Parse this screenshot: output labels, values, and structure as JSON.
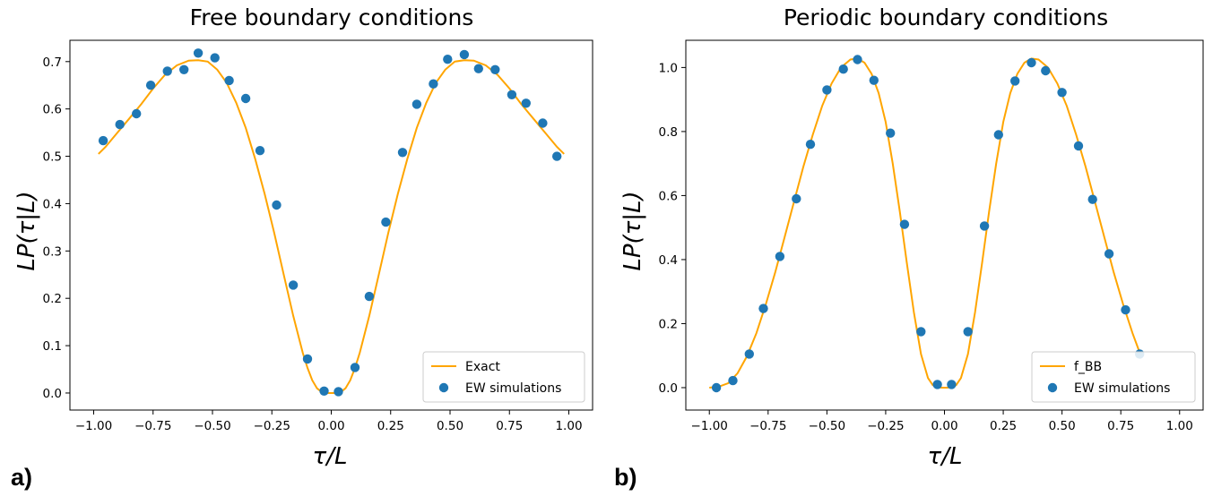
{
  "chart_data": [
    {
      "type": "line",
      "panel_label": "a)",
      "title": "Free boundary conditions",
      "xlabel": "τ/L",
      "ylabel": "LP(τ|L)",
      "xlim": [
        -1.1,
        1.1
      ],
      "ylim": [
        -0.036,
        0.745
      ],
      "xticks": [
        -1.0,
        -0.75,
        -0.5,
        -0.25,
        0.0,
        0.25,
        0.5,
        0.75,
        1.0
      ],
      "xtick_labels": [
        "−1.00",
        "−0.75",
        "−0.50",
        "−0.25",
        "0.00",
        "0.25",
        "0.50",
        "0.75",
        "1.00"
      ],
      "yticks": [
        0.0,
        0.1,
        0.2,
        0.3,
        0.4,
        0.5,
        0.6,
        0.7
      ],
      "ytick_labels": [
        "0.0",
        "0.1",
        "0.2",
        "0.3",
        "0.4",
        "0.5",
        "0.6",
        "0.7"
      ],
      "legend_position": "lower right",
      "series": [
        {
          "name": "Exact",
          "kind": "line",
          "color": "#FFA500",
          "x": [
            -0.98,
            -0.95,
            -0.9,
            -0.85,
            -0.8,
            -0.75,
            -0.7,
            -0.65,
            -0.6,
            -0.56,
            -0.52,
            -0.48,
            -0.44,
            -0.4,
            -0.36,
            -0.32,
            -0.28,
            -0.24,
            -0.2,
            -0.16,
            -0.12,
            -0.1,
            -0.08,
            -0.06,
            -0.04,
            -0.02,
            0.0,
            0.02,
            0.04,
            0.06,
            0.08,
            0.1,
            0.12,
            0.16,
            0.2,
            0.24,
            0.28,
            0.32,
            0.36,
            0.4,
            0.44,
            0.48,
            0.52,
            0.56,
            0.6,
            0.65,
            0.7,
            0.75,
            0.8,
            0.85,
            0.9,
            0.95,
            0.98
          ],
          "y": [
            0.505,
            0.52,
            0.55,
            0.58,
            0.61,
            0.643,
            0.672,
            0.692,
            0.702,
            0.703,
            0.7,
            0.683,
            0.655,
            0.613,
            0.56,
            0.494,
            0.42,
            0.338,
            0.25,
            0.163,
            0.085,
            0.053,
            0.027,
            0.01,
            0.002,
            0.0,
            0.0,
            0.0,
            0.002,
            0.01,
            0.027,
            0.053,
            0.085,
            0.163,
            0.25,
            0.338,
            0.42,
            0.494,
            0.56,
            0.613,
            0.655,
            0.683,
            0.7,
            0.703,
            0.702,
            0.692,
            0.672,
            0.643,
            0.61,
            0.58,
            0.55,
            0.52,
            0.505
          ]
        },
        {
          "name": "EW simulations",
          "kind": "scatter",
          "color": "#1F77B4",
          "x": [
            -0.96,
            -0.89,
            -0.82,
            -0.76,
            -0.69,
            -0.62,
            -0.56,
            -0.49,
            -0.43,
            -0.36,
            -0.3,
            -0.23,
            -0.16,
            -0.1,
            -0.03,
            0.03,
            0.1,
            0.16,
            0.23,
            0.3,
            0.36,
            0.43,
            0.49,
            0.56,
            0.62,
            0.69,
            0.76,
            0.82,
            0.89,
            0.95
          ],
          "y": [
            0.533,
            0.567,
            0.59,
            0.65,
            0.68,
            0.683,
            0.718,
            0.708,
            0.66,
            0.622,
            0.512,
            0.397,
            0.228,
            0.072,
            0.004,
            0.003,
            0.054,
            0.204,
            0.361,
            0.508,
            0.61,
            0.653,
            0.705,
            0.715,
            0.685,
            0.683,
            0.63,
            0.612,
            0.57,
            0.5
          ]
        }
      ]
    },
    {
      "type": "line",
      "panel_label": "b)",
      "title": "Periodic boundary conditions",
      "xlabel": "τ/L",
      "ylabel": "LP(τ|L)",
      "xlim": [
        -1.1,
        1.1
      ],
      "ylim": [
        -0.07,
        1.085
      ],
      "xticks": [
        -1.0,
        -0.75,
        -0.5,
        -0.25,
        0.0,
        0.25,
        0.5,
        0.75,
        1.0
      ],
      "xtick_labels": [
        "−1.00",
        "−0.75",
        "−0.50",
        "−0.25",
        "0.00",
        "0.25",
        "0.50",
        "0.75",
        "1.00"
      ],
      "yticks": [
        0.0,
        0.2,
        0.4,
        0.6,
        0.8,
        1.0
      ],
      "ytick_labels": [
        "0.0",
        "0.2",
        "0.4",
        "0.6",
        "0.8",
        "1.0"
      ],
      "legend_position": "lower right",
      "series": [
        {
          "name": "f_BB",
          "kind": "line",
          "color": "#FFA500",
          "x": [
            -1.0,
            -0.96,
            -0.92,
            -0.88,
            -0.84,
            -0.8,
            -0.76,
            -0.72,
            -0.68,
            -0.64,
            -0.6,
            -0.56,
            -0.52,
            -0.48,
            -0.44,
            -0.4,
            -0.37,
            -0.34,
            -0.31,
            -0.28,
            -0.25,
            -0.22,
            -0.19,
            -0.16,
            -0.13,
            -0.1,
            -0.07,
            -0.05,
            -0.03,
            -0.01,
            0.0,
            0.01,
            0.03,
            0.05,
            0.07,
            0.1,
            0.13,
            0.16,
            0.19,
            0.22,
            0.25,
            0.28,
            0.31,
            0.34,
            0.37,
            0.4,
            0.44,
            0.48,
            0.52,
            0.56,
            0.6,
            0.64,
            0.68,
            0.72,
            0.76,
            0.8,
            0.83
          ],
          "y": [
            0.0,
            0.003,
            0.014,
            0.045,
            0.098,
            0.17,
            0.26,
            0.36,
            0.47,
            0.58,
            0.69,
            0.79,
            0.88,
            0.95,
            1.0,
            1.025,
            1.028,
            1.015,
            0.98,
            0.92,
            0.83,
            0.7,
            0.55,
            0.39,
            0.235,
            0.105,
            0.03,
            0.008,
            0.001,
            0.0,
            0.0,
            0.0,
            0.001,
            0.008,
            0.03,
            0.105,
            0.235,
            0.39,
            0.55,
            0.7,
            0.83,
            0.92,
            0.98,
            1.015,
            1.028,
            1.025,
            1.0,
            0.95,
            0.88,
            0.79,
            0.69,
            0.58,
            0.47,
            0.36,
            0.26,
            0.17,
            0.11
          ]
        },
        {
          "name": "EW simulations",
          "kind": "scatter",
          "color": "#1F77B4",
          "x": [
            -0.97,
            -0.9,
            -0.83,
            -0.77,
            -0.7,
            -0.63,
            -0.57,
            -0.5,
            -0.43,
            -0.37,
            -0.3,
            -0.23,
            -0.17,
            -0.1,
            -0.03,
            0.03,
            0.1,
            0.17,
            0.23,
            0.3,
            0.37,
            0.43,
            0.5,
            0.57,
            0.63,
            0.7,
            0.77,
            0.83
          ],
          "y": [
            0.0,
            0.022,
            0.105,
            0.247,
            0.41,
            0.59,
            0.76,
            0.93,
            0.995,
            1.025,
            0.96,
            0.795,
            0.51,
            0.175,
            0.01,
            0.01,
            0.175,
            0.505,
            0.79,
            0.958,
            1.015,
            0.99,
            0.922,
            0.755,
            0.588,
            0.418,
            0.243,
            0.105
          ]
        }
      ]
    }
  ]
}
